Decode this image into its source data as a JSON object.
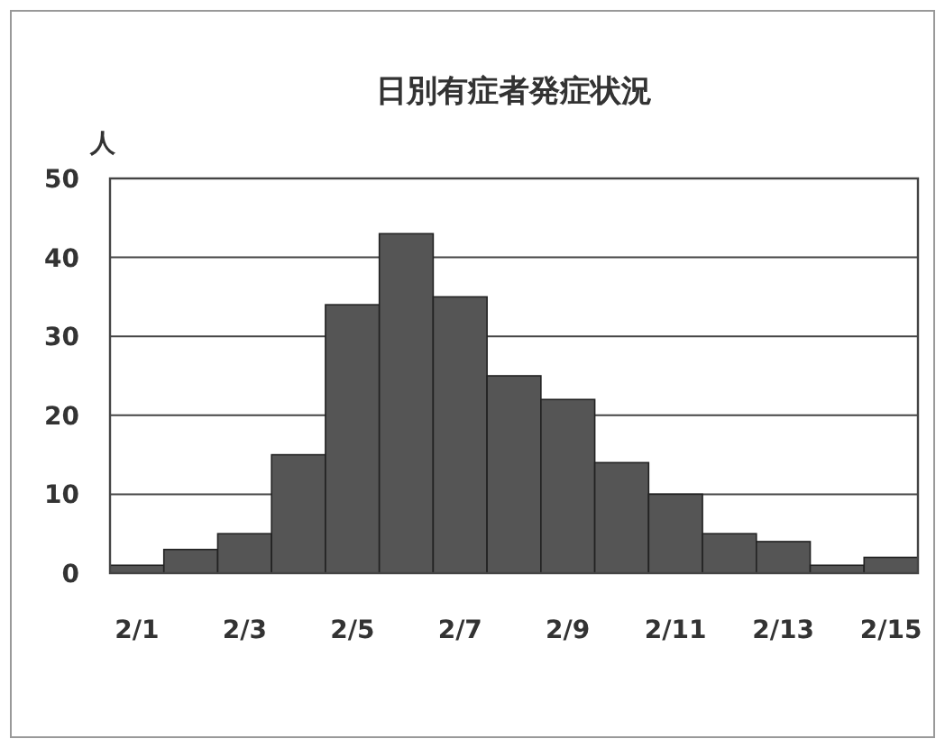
{
  "chart_data": {
    "type": "bar",
    "title": "日別有症者発症状況",
    "ylabel": "人",
    "categories": [
      "2/1",
      null,
      "2/3",
      null,
      "2/5",
      null,
      "2/7",
      null,
      "2/9",
      null,
      "2/11",
      null,
      "2/13",
      null,
      "2/15"
    ],
    "values": [
      1,
      3,
      5,
      15,
      34,
      43,
      35,
      25,
      22,
      14,
      10,
      5,
      4,
      1,
      2
    ],
    "color": "#555555",
    "ylim": [
      0,
      50
    ],
    "yticks": [
      0,
      10,
      20,
      30,
      40,
      50
    ],
    "grid": "y"
  }
}
